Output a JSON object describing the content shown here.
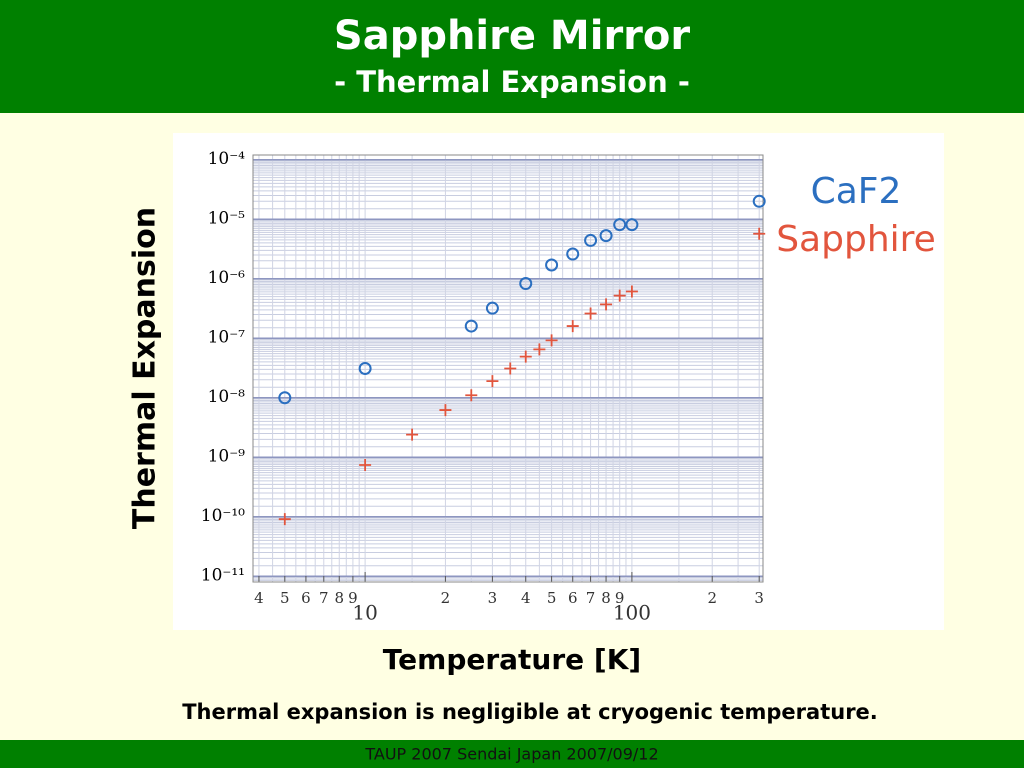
{
  "header": {
    "title": "Sapphire Mirror",
    "subtitle": "- Thermal Expansion -"
  },
  "chart_data": {
    "type": "scatter",
    "xlabel": "Temperature [K]",
    "ylabel": "Thermal Expansion",
    "xscale": "log",
    "yscale": "log",
    "grid": true,
    "legend": "right",
    "xlim": [
      3.8,
      310
    ],
    "ylim": [
      8e-12,
      0.00012
    ],
    "xticks": [
      4,
      5,
      6,
      7,
      8,
      9,
      10,
      {
        "value": 20,
        "label": "2"
      },
      {
        "value": 30,
        "label": "3"
      },
      {
        "value": 40,
        "label": "4"
      },
      {
        "value": 50,
        "label": "5"
      },
      {
        "value": 60,
        "label": "6"
      },
      {
        "value": 70,
        "label": "7"
      },
      {
        "value": 80,
        "label": "8"
      },
      {
        "value": 90,
        "label": "9"
      },
      100,
      {
        "value": 200,
        "label": "2"
      },
      {
        "value": 300,
        "label": "3"
      }
    ],
    "yticks": [
      {
        "value": 0.0001,
        "label": "10⁻⁴"
      },
      {
        "value": 1e-05,
        "label": "10⁻⁵"
      },
      {
        "value": 1e-06,
        "label": "10⁻⁶"
      },
      {
        "value": 1e-07,
        "label": "10⁻⁷"
      },
      {
        "value": 1e-08,
        "label": "10⁻⁸"
      },
      {
        "value": 1e-09,
        "label": "10⁻⁹"
      },
      {
        "value": 1e-10,
        "label": "10⁻¹⁰"
      },
      {
        "value": 1e-11,
        "label": "10⁻¹¹"
      }
    ],
    "series": [
      {
        "name": "CaF2",
        "color": "#2b6fc0",
        "marker": "circle",
        "x": [
          5,
          10,
          25,
          30,
          40,
          50,
          60,
          70,
          80,
          90,
          100,
          300
        ],
        "values": [
          1e-08,
          3.1e-08,
          1.6e-07,
          3.2e-07,
          8.3e-07,
          1.7e-06,
          2.6e-06,
          4.4e-06,
          5.3e-06,
          8.1e-06,
          8.1e-06,
          2e-05
        ]
      },
      {
        "name": "Sapphire",
        "color": "#e2553d",
        "marker": "plus",
        "x": [
          5,
          10,
          15,
          20,
          25,
          30,
          35,
          40,
          45,
          50,
          60,
          70,
          80,
          90,
          100,
          300
        ],
        "values": [
          9.1e-11,
          7.4e-10,
          2.4e-09,
          6.2e-09,
          1.1e-08,
          1.9e-08,
          3.1e-08,
          4.9e-08,
          6.5e-08,
          9.2e-08,
          1.6e-07,
          2.6e-07,
          3.7e-07,
          5.2e-07,
          6.1e-07,
          5.7e-06
        ]
      }
    ]
  },
  "caption": "Thermal expansion is negligible at cryogenic temperature.",
  "footer": "TAUP 2007 Sendai Japan 2007/09/12"
}
